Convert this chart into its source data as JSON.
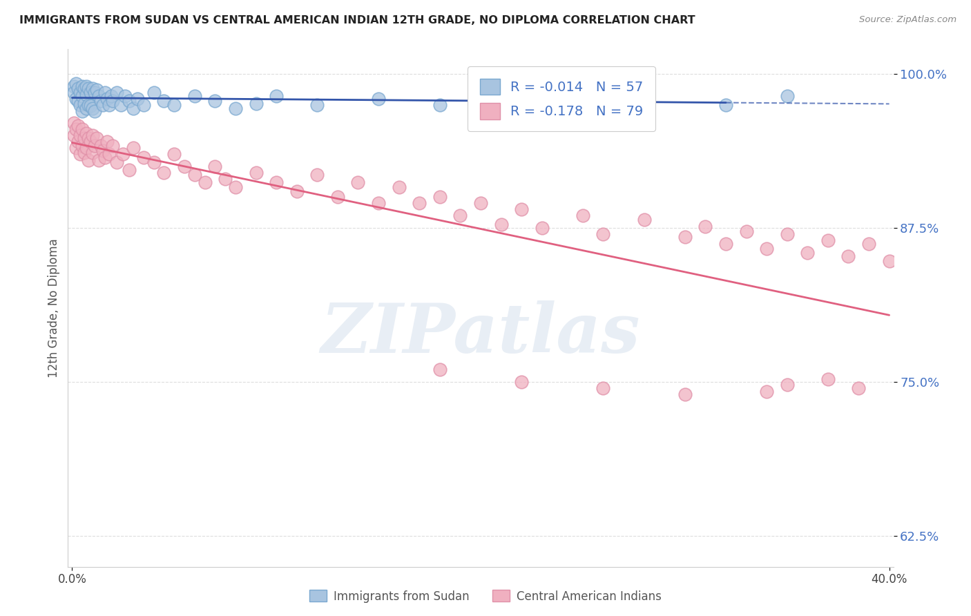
{
  "title": "IMMIGRANTS FROM SUDAN VS CENTRAL AMERICAN INDIAN 12TH GRADE, NO DIPLOMA CORRELATION CHART",
  "source": "Source: ZipAtlas.com",
  "ylabel": "12th Grade, No Diploma",
  "r_blue": "-0.014",
  "n_blue": "57",
  "r_pink": "-0.178",
  "n_pink": "79",
  "blue_color": "#a8c4e0",
  "pink_color": "#f0b0c0",
  "blue_edge_color": "#7aa8d0",
  "pink_edge_color": "#e090a8",
  "trend_blue_color": "#3355aa",
  "trend_pink_color": "#e06080",
  "text_color": "#4472c4",
  "title_color": "#222222",
  "source_color": "#888888",
  "ylabel_color": "#555555",
  "grid_color": "#dddddd",
  "background_color": "#ffffff",
  "legend_label_blue": "Immigrants from Sudan",
  "legend_label_pink": "Central American Indians",
  "xlim": [
    0.0,
    0.4
  ],
  "ylim": [
    0.6,
    1.02
  ],
  "y_ticks": [
    0.625,
    0.75,
    0.875,
    1.0
  ],
  "y_tick_labels": [
    "62.5%",
    "75.0%",
    "87.5%",
    "100.0%"
  ],
  "blue_scatter_x": [
    0.001,
    0.001,
    0.002,
    0.002,
    0.003,
    0.003,
    0.004,
    0.004,
    0.005,
    0.005,
    0.005,
    0.006,
    0.006,
    0.007,
    0.007,
    0.007,
    0.008,
    0.008,
    0.009,
    0.009,
    0.01,
    0.01,
    0.011,
    0.011,
    0.012,
    0.013,
    0.014,
    0.015,
    0.016,
    0.017,
    0.018,
    0.019,
    0.02,
    0.022,
    0.024,
    0.026,
    0.028,
    0.03,
    0.032,
    0.035,
    0.04,
    0.045,
    0.05,
    0.06,
    0.07,
    0.08,
    0.09,
    0.1,
    0.12,
    0.15,
    0.18,
    0.2,
    0.22,
    0.25,
    0.28,
    0.32,
    0.35
  ],
  "blue_scatter_y": [
    0.99,
    0.985,
    0.992,
    0.98,
    0.988,
    0.978,
    0.985,
    0.975,
    0.99,
    0.982,
    0.97,
    0.988,
    0.976,
    0.99,
    0.983,
    0.972,
    0.988,
    0.975,
    0.985,
    0.974,
    0.988,
    0.972,
    0.985,
    0.97,
    0.987,
    0.982,
    0.978,
    0.975,
    0.985,
    0.98,
    0.975,
    0.982,
    0.978,
    0.985,
    0.975,
    0.982,
    0.978,
    0.972,
    0.98,
    0.975,
    0.985,
    0.978,
    0.975,
    0.982,
    0.978,
    0.972,
    0.976,
    0.982,
    0.975,
    0.98,
    0.975,
    0.985,
    0.972,
    0.98,
    0.978,
    0.975,
    0.982
  ],
  "pink_scatter_x": [
    0.001,
    0.001,
    0.002,
    0.002,
    0.003,
    0.003,
    0.004,
    0.004,
    0.005,
    0.005,
    0.006,
    0.006,
    0.007,
    0.007,
    0.008,
    0.008,
    0.009,
    0.01,
    0.01,
    0.011,
    0.012,
    0.013,
    0.014,
    0.015,
    0.016,
    0.017,
    0.018,
    0.02,
    0.022,
    0.025,
    0.028,
    0.03,
    0.035,
    0.04,
    0.045,
    0.05,
    0.055,
    0.06,
    0.065,
    0.07,
    0.075,
    0.08,
    0.09,
    0.1,
    0.11,
    0.12,
    0.13,
    0.14,
    0.15,
    0.16,
    0.17,
    0.18,
    0.19,
    0.2,
    0.21,
    0.22,
    0.23,
    0.25,
    0.26,
    0.28,
    0.3,
    0.31,
    0.32,
    0.33,
    0.34,
    0.35,
    0.36,
    0.37,
    0.38,
    0.39,
    0.4,
    0.18,
    0.22,
    0.26,
    0.3,
    0.34,
    0.35,
    0.37,
    0.385
  ],
  "pink_scatter_y": [
    0.96,
    0.95,
    0.955,
    0.94,
    0.958,
    0.945,
    0.95,
    0.935,
    0.955,
    0.942,
    0.948,
    0.936,
    0.952,
    0.94,
    0.948,
    0.93,
    0.945,
    0.95,
    0.936,
    0.942,
    0.948,
    0.93,
    0.942,
    0.938,
    0.932,
    0.945,
    0.935,
    0.942,
    0.928,
    0.935,
    0.922,
    0.94,
    0.932,
    0.928,
    0.92,
    0.935,
    0.925,
    0.918,
    0.912,
    0.925,
    0.915,
    0.908,
    0.92,
    0.912,
    0.905,
    0.918,
    0.9,
    0.912,
    0.895,
    0.908,
    0.895,
    0.9,
    0.885,
    0.895,
    0.878,
    0.89,
    0.875,
    0.885,
    0.87,
    0.882,
    0.868,
    0.876,
    0.862,
    0.872,
    0.858,
    0.87,
    0.855,
    0.865,
    0.852,
    0.862,
    0.848,
    0.76,
    0.75,
    0.745,
    0.74,
    0.742,
    0.748,
    0.752,
    0.745
  ],
  "watermark_text": "ZIPatlas",
  "watermark_color": "#e8eef5"
}
